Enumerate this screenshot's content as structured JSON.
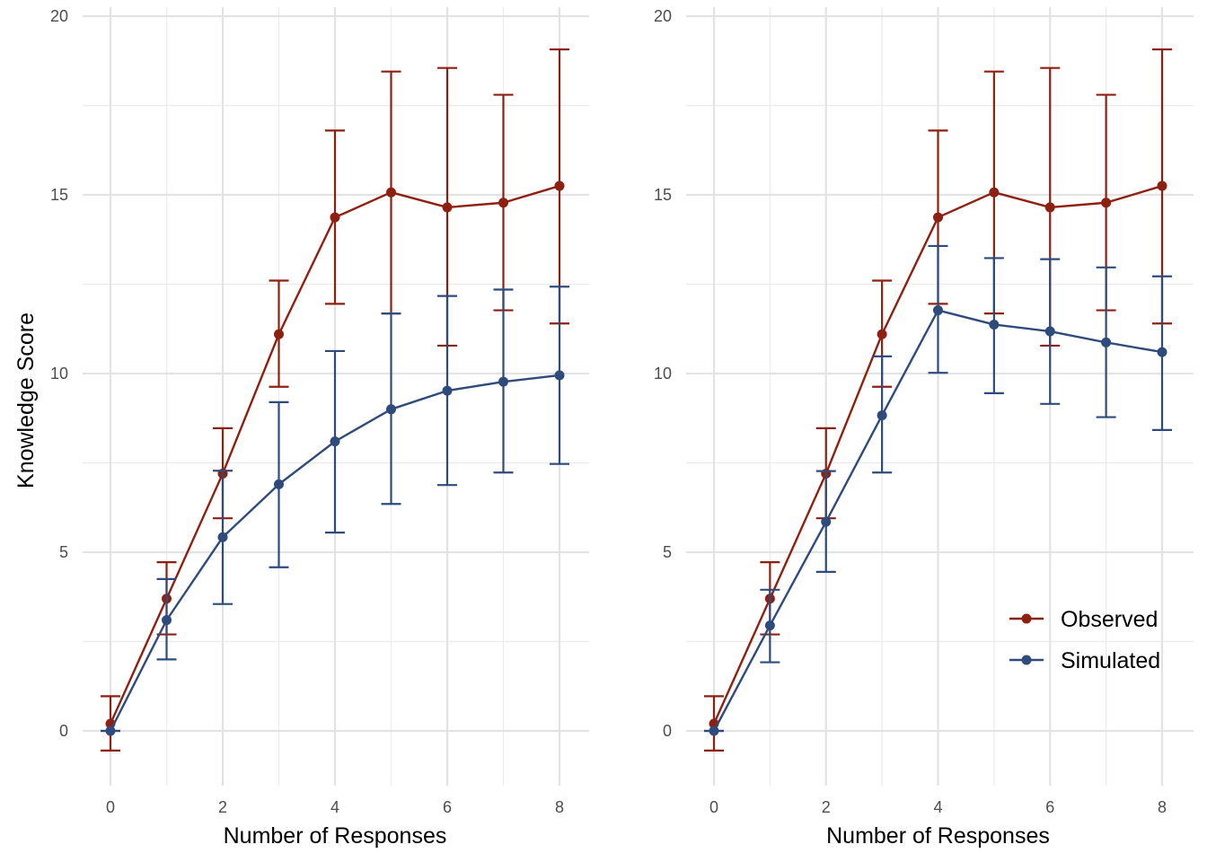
{
  "chart_data": [
    {
      "type": "line",
      "panel": "left",
      "xlabel": "Number of Responses",
      "ylabel": "Knowledge Score",
      "xlim": [
        -0.4,
        8.55
      ],
      "ylim": [
        -1.4,
        20
      ],
      "x_ticks": [
        0,
        2,
        4,
        6,
        8
      ],
      "y_ticks": [
        0,
        5,
        10,
        15,
        20
      ],
      "grid": true,
      "legend": false,
      "series": [
        {
          "name": "Observed",
          "color": "#8e2012",
          "x": [
            0,
            1,
            2,
            3,
            4,
            5,
            6,
            7,
            8
          ],
          "y": [
            0.2,
            3.7,
            7.2,
            11.1,
            14.37,
            15.07,
            14.65,
            14.78,
            15.25
          ],
          "err_low": [
            -0.55,
            2.7,
            5.95,
            9.63,
            11.95,
            11.68,
            10.78,
            11.77,
            11.4
          ],
          "err_high": [
            0.97,
            4.72,
            8.47,
            12.6,
            16.8,
            18.45,
            18.55,
            17.8,
            19.07
          ]
        },
        {
          "name": "Simulated",
          "color": "#2f4b7c",
          "x": [
            0,
            1,
            2,
            3,
            4,
            5,
            6,
            7,
            8
          ],
          "y": [
            0.0,
            3.1,
            5.42,
            6.9,
            8.1,
            9.0,
            9.52,
            9.77,
            9.95
          ],
          "err_low": [
            0.0,
            2.0,
            3.55,
            4.58,
            5.55,
            6.35,
            6.88,
            7.23,
            7.47
          ],
          "err_high": [
            0.0,
            4.25,
            7.28,
            9.2,
            10.63,
            11.68,
            12.17,
            12.35,
            12.43
          ]
        }
      ]
    },
    {
      "type": "line",
      "panel": "right",
      "xlabel": "Number of Responses",
      "ylabel": "",
      "xlim": [
        -0.4,
        8.55
      ],
      "ylim": [
        -1.4,
        20
      ],
      "x_ticks": [
        0,
        2,
        4,
        6,
        8
      ],
      "y_ticks": [
        0,
        5,
        10,
        15,
        20
      ],
      "grid": true,
      "legend": true,
      "legend_position": "bottom-right",
      "series": [
        {
          "name": "Observed",
          "color": "#8e2012",
          "x": [
            0,
            1,
            2,
            3,
            4,
            5,
            6,
            7,
            8
          ],
          "y": [
            0.2,
            3.7,
            7.2,
            11.1,
            14.37,
            15.07,
            14.65,
            14.78,
            15.25
          ],
          "err_low": [
            -0.55,
            2.7,
            5.95,
            9.63,
            11.95,
            11.68,
            10.78,
            11.77,
            11.4
          ],
          "err_high": [
            0.97,
            4.72,
            8.47,
            12.6,
            16.8,
            18.45,
            18.55,
            17.8,
            19.07
          ]
        },
        {
          "name": "Simulated",
          "color": "#2f4b7c",
          "x": [
            0,
            1,
            2,
            3,
            4,
            5,
            6,
            7,
            8
          ],
          "y": [
            0.0,
            2.95,
            5.85,
            8.83,
            11.77,
            11.37,
            11.18,
            10.87,
            10.6
          ],
          "err_low": [
            0.0,
            1.92,
            4.45,
            7.23,
            10.02,
            9.45,
            9.15,
            8.78,
            8.42
          ],
          "err_high": [
            0.0,
            3.95,
            7.27,
            10.48,
            13.57,
            13.23,
            13.2,
            12.97,
            12.72
          ]
        }
      ]
    }
  ]
}
